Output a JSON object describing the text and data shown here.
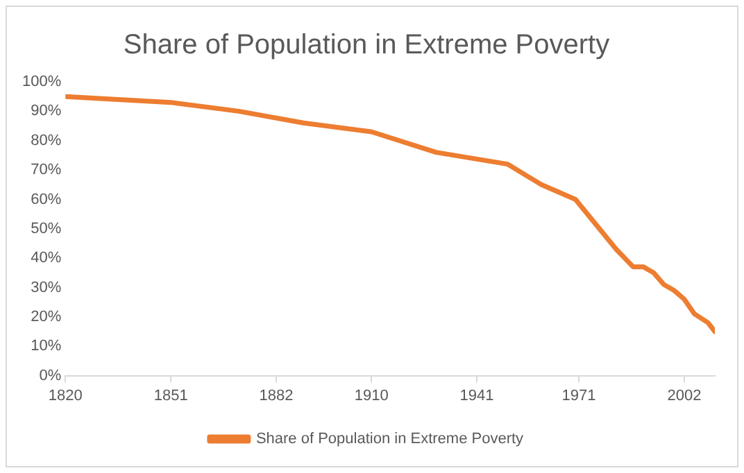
{
  "chart_data": {
    "type": "line",
    "title": "Share of Population in Extreme Poverty",
    "x": [
      1820,
      1851,
      1871,
      1890,
      1910,
      1929,
      1950,
      1960,
      1970,
      1982,
      1987,
      1990,
      1993,
      1996,
      1999,
      2002,
      2005,
      2009,
      2011
    ],
    "series": [
      {
        "name": "Share of Population in Extreme Poverty",
        "color": "#ed7d31",
        "values": [
          95,
          93,
          90,
          86,
          83,
          76,
          72,
          65,
          60,
          43,
          37,
          37,
          35,
          31,
          29,
          26,
          21,
          18,
          15
        ]
      }
    ],
    "xlim": [
      1820,
      2011
    ],
    "xticks": [
      1820,
      1851,
      1882,
      1910,
      1941,
      1971,
      2002
    ],
    "ylim": [
      0,
      100
    ],
    "yticks": [
      {
        "value": 0,
        "label": "0%"
      },
      {
        "value": 10,
        "label": "10%"
      },
      {
        "value": 20,
        "label": "20%"
      },
      {
        "value": 30,
        "label": "30%"
      },
      {
        "value": 40,
        "label": "40%"
      },
      {
        "value": 50,
        "label": "50%"
      },
      {
        "value": 60,
        "label": "60%"
      },
      {
        "value": 70,
        "label": "70%"
      },
      {
        "value": 80,
        "label": "80%"
      },
      {
        "value": 90,
        "label": "90%"
      },
      {
        "value": 100,
        "label": "100%"
      }
    ],
    "grid": false,
    "legend": "bottom",
    "marker": "none",
    "line_style": "solid"
  }
}
